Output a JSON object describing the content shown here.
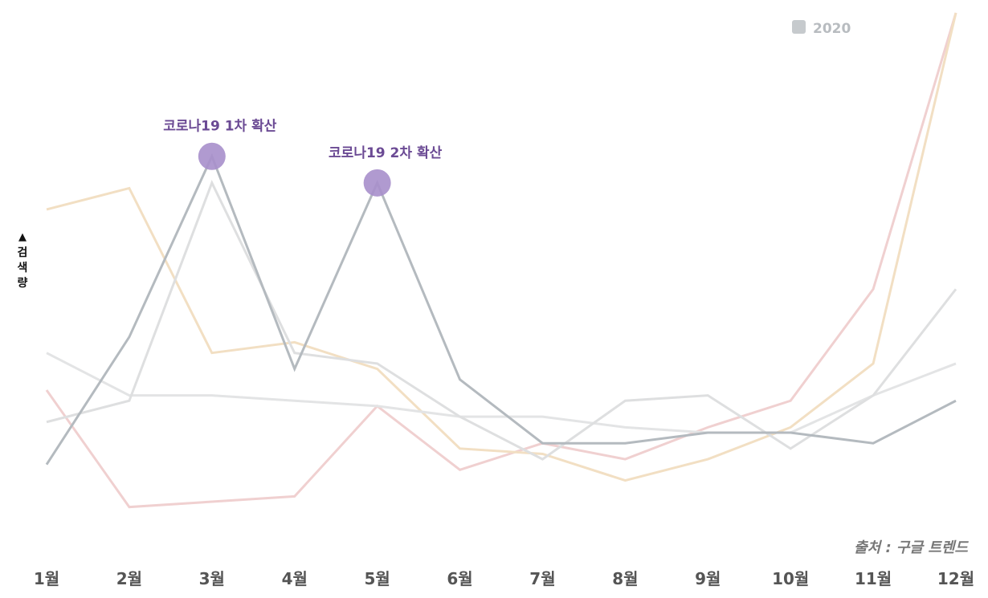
{
  "chart_data": {
    "type": "line",
    "ylabel": "검색량",
    "ylabel_arrow": "▲",
    "x": [
      "1월",
      "2월",
      "3월",
      "4월",
      "5월",
      "6월",
      "7월",
      "8월",
      "9월",
      "10월",
      "11월",
      "12월"
    ],
    "ylim": [
      0,
      100
    ],
    "grid": false,
    "legend_position": "top-right",
    "series": [
      {
        "name": "2020",
        "color": "#b4babf",
        "width": 3,
        "values": [
          15,
          39,
          73,
          33,
          68,
          31,
          19,
          19,
          21,
          21,
          19,
          27
        ]
      },
      {
        "color": "#dedfe0",
        "width": 3,
        "values": [
          23,
          27,
          68,
          36,
          34,
          24,
          16,
          27,
          28,
          18,
          28,
          48
        ]
      },
      {
        "color": "#e3e4e5",
        "width": 3,
        "values": [
          36,
          28,
          28,
          27,
          26,
          24,
          24,
          22,
          21,
          21,
          28,
          34
        ]
      },
      {
        "color": "#f2dfc3",
        "width": 3,
        "values": [
          63,
          67,
          36,
          38,
          33,
          18,
          17,
          12,
          16,
          22,
          34,
          100
        ]
      },
      {
        "color": "#f0d0d0",
        "width": 3,
        "values": [
          29,
          7,
          8,
          9,
          26,
          14,
          19,
          16,
          22,
          27,
          48,
          100
        ]
      }
    ],
    "annotations": [
      {
        "text": "코로나19 1차 확산",
        "x_index": 2,
        "series_index": 0
      },
      {
        "text": "코로나19 2차 확산",
        "x_index": 4,
        "series_index": 0
      }
    ],
    "source": "출처 : 구글 트렌드"
  },
  "colors": {
    "annotation_marker": "#a78fcb",
    "annotation_text": "#6b4a94",
    "legend_swatch": "#c6cacd",
    "tick_label": "#555555"
  }
}
